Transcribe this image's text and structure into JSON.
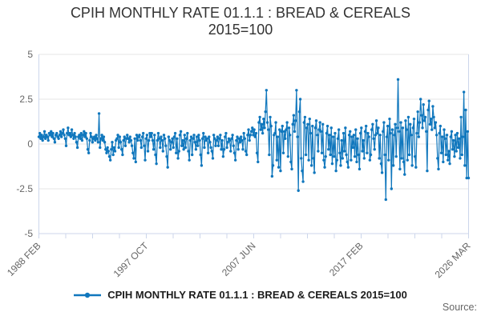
{
  "title": {
    "line1": "CPIH MONTHLY RATE 01.1.1 : BREAD & CEREALS",
    "line2": "2015=100"
  },
  "legend": {
    "label": "CPIH MONTHLY RATE 01.1.1 : BREAD & CEREALS 2015=100"
  },
  "footer": {
    "source_label": "Source:"
  },
  "colors": {
    "series": "#1077bd",
    "grid": "#e6e6e6",
    "axis": "#ccd6eb",
    "tick_label": "#666666",
    "title_text": "#333333"
  },
  "chart_data": {
    "type": "line",
    "title": "CPIH MONTHLY RATE 01.1.1 : BREAD & CEREALS",
    "subtitle": "2015=100",
    "series_name": "CPIH MONTHLY RATE 01.1.1 : BREAD & CEREALS 2015=100",
    "x_start": "1988 FEB",
    "x_end": "2026 MAR",
    "x_frequency": "monthly",
    "x_tick_labels": [
      "1988 FEB",
      "1997 OCT",
      "2007 JUN",
      "2017 FEB",
      "2026 MAR"
    ],
    "x_minor_tick_count": 17,
    "y_ticks": [
      5,
      2.5,
      0,
      -2.5,
      -5
    ],
    "ylim": [
      -5,
      5
    ],
    "grid": "horizontal",
    "legend_position": "bottom",
    "marker": "circle",
    "values": [
      0.4,
      0.6,
      0.3,
      0.5,
      0.2,
      0.4,
      0.7,
      0.3,
      0.5,
      0.4,
      0.2,
      0.6,
      0.5,
      0.7,
      0.4,
      0.6,
      0.3,
      0.1,
      0.5,
      0.6,
      0.4,
      0.3,
      0.5,
      0.7,
      0.4,
      0.6,
      0.8,
      0.5,
      0.3,
      -0.1,
      0.6,
      0.9,
      0.5,
      0.6,
      0.4,
      0.8,
      0.5,
      0.3,
      0.6,
      0.4,
      0.1,
      -0.2,
      0.4,
      0.5,
      0.3,
      0.6,
      0.2,
      0.5,
      0.7,
      0.4,
      0.6,
      0.3,
      -0.3,
      -0.5,
      0.2,
      0.6,
      0.4,
      0.1,
      0.3,
      0.4,
      0.2,
      0.5,
      0.3,
      0.1,
      1.7,
      -0.2,
      0.3,
      0.5,
      0.2,
      0.4,
      0.1,
      -0.3,
      -0.5,
      -0.2,
      -0.4,
      -0.7,
      -0.9,
      -0.3,
      0.1,
      -0.6,
      -0.2,
      -0.4,
      0.2,
      0.3,
      0.5,
      -0.2,
      0.4,
      0.1,
      -0.3,
      -0.6,
      0.2,
      0.4,
      -0.1,
      0.3,
      0.5,
      0.3,
      0.1,
      0.4,
      0.2,
      -0.1,
      -0.5,
      -0.8,
      0.3,
      -1.0,
      0.5,
      0.2,
      0.4,
      0.5,
      0.2,
      -0.2,
      0.4,
      0.6,
      -0.1,
      -0.9,
      0.3,
      0.5,
      -0.4,
      0.2,
      0.6,
      0.4,
      0.6,
      0.2,
      -0.3,
      0.5,
      -0.6,
      -1.1,
      0.2,
      0.6,
      0.3,
      -0.2,
      0.4,
      0.2,
      -0.4,
      0.5,
      0.3,
      -0.1,
      -0.7,
      -1.3,
      0.4,
      0.2,
      -0.3,
      0.1,
      0.3,
      -0.2,
      0.4,
      0.6,
      -0.5,
      0.3,
      -0.8,
      -0.4,
      0.5,
      0.7,
      -0.1,
      0.2,
      -0.3,
      0.5,
      -0.2,
      0.3,
      0.6,
      -0.4,
      -0.9,
      0.2,
      0.4,
      -0.6,
      0.3,
      0.5,
      0.1,
      -0.3,
      0.4,
      -0.1,
      0.5,
      0.2,
      -0.6,
      -1.2,
      0.3,
      0.6,
      -0.2,
      0.4,
      0.2,
      0.3,
      -0.5,
      0.4,
      0.1,
      -0.2,
      -0.4,
      -0.8,
      0.5,
      0.3,
      -0.1,
      0.2,
      0.4,
      -0.1,
      0.3,
      0.5,
      -0.3,
      0.2,
      -0.7,
      -0.3,
      0.4,
      0.6,
      -0.2,
      0.1,
      0.3,
      0.2,
      -0.4,
      0.3,
      0.5,
      -0.1,
      -0.5,
      -0.9,
      0.2,
      0.4,
      -0.3,
      0.3,
      0.1,
      0.4,
      0.2,
      -0.3,
      0.6,
      0.3,
      -0.4,
      -0.6,
      0.5,
      0.8,
      0.2,
      0.5,
      0.7,
      0.9,
      0.5,
      0.8,
      0.4,
      0.6,
      -0.5,
      -1.0,
      1.2,
      1.5,
      0.8,
      1.1,
      0.6,
      1.4,
      0.9,
      1.8,
      3.0,
      1.2,
      0.8,
      -0.6,
      1.5,
      1.0,
      -1.8,
      -1.2,
      0.5,
      0.6,
      1.2,
      -0.9,
      0.4,
      -1.3,
      0.8,
      -1.5,
      0.7,
      1.0,
      -0.5,
      0.7,
      0.3,
      0.8,
      1.2,
      -0.7,
      0.9,
      0.5,
      -1.0,
      -1.4,
      1.1,
      1.6,
      0.7,
      1.3,
      3.0,
      0.4,
      -2.6,
      1.8,
      2.5,
      -0.8,
      -1.5,
      -2.1,
      1.2,
      1.5,
      -0.6,
      0.9,
      1.1,
      -0.9,
      1.4,
      0.6,
      -1.2,
      1.0,
      -0.8,
      -1.6,
      0.9,
      1.3,
      0.5,
      -0.4,
      0.8,
      1.2,
      0.7,
      -0.5,
      1.1,
      -0.9,
      -1.3,
      -0.7,
      0.6,
      1.0,
      -0.3,
      0.5,
      -0.6,
      0.9,
      -1.1,
      0.4,
      -0.7,
      0.6,
      -1.5,
      -0.9,
      0.3,
      0.8,
      -0.5,
      -1.2,
      0.2,
      -0.8,
      0.6,
      -0.4,
      0.9,
      -0.6,
      -1.0,
      -1.3,
      0.5,
      0.7,
      -0.9,
      0.4,
      -0.2,
      0.5,
      -0.7,
      0.8,
      -1.0,
      0.3,
      -0.6,
      -1.4,
      0.6,
      0.9,
      -0.4,
      0.2,
      -0.8,
      0.7,
      1.0,
      -0.5,
      0.6,
      0.4,
      -0.9,
      -0.6,
      0.8,
      1.1,
      0.3,
      -0.3,
      0.5,
      1.3,
      0.6,
      0.9,
      -0.8,
      0.5,
      -1.1,
      -1.6,
      0.7,
      1.2,
      -0.6,
      -3.1,
      0.4,
      1.0,
      -0.9,
      1.4,
      0.6,
      -2.5,
      0.8,
      -1.2,
      0.5,
      1.1,
      -0.7,
      0.9,
      3.6,
      0.7,
      -1.4,
      1.2,
      -0.8,
      0.9,
      -1.0,
      -1.7,
      1.3,
      0.8,
      -0.9,
      1.5,
      -0.6,
      1.1,
      0.5,
      -1.2,
      0.9,
      1.4,
      -0.7,
      -1.3,
      0.6,
      1.8,
      0.4,
      1.2,
      2.5,
      1.6,
      0.9,
      2.2,
      1.3,
      1.5,
      0.7,
      -1.5,
      1.9,
      2.4,
      1.1,
      1.4,
      0.8,
      2.1,
      1.5,
      0.9,
      1.2,
      0.5,
      -0.8,
      -1.4,
      0.6,
      1.0,
      -0.5,
      0.4,
      -1.0,
      0.8,
      0.3,
      -0.6,
      0.5,
      -0.9,
      -0.4,
      -1.1,
      0.4,
      0.7,
      -0.3,
      0.2,
      -0.7,
      0.5,
      -0.4,
      0.6,
      -0.2,
      0.3,
      -0.8,
      1.5,
      -0.6,
      0.4,
      2.9,
      -1.2,
      1.9,
      -1.9,
      0.7,
      -1.9
    ]
  }
}
